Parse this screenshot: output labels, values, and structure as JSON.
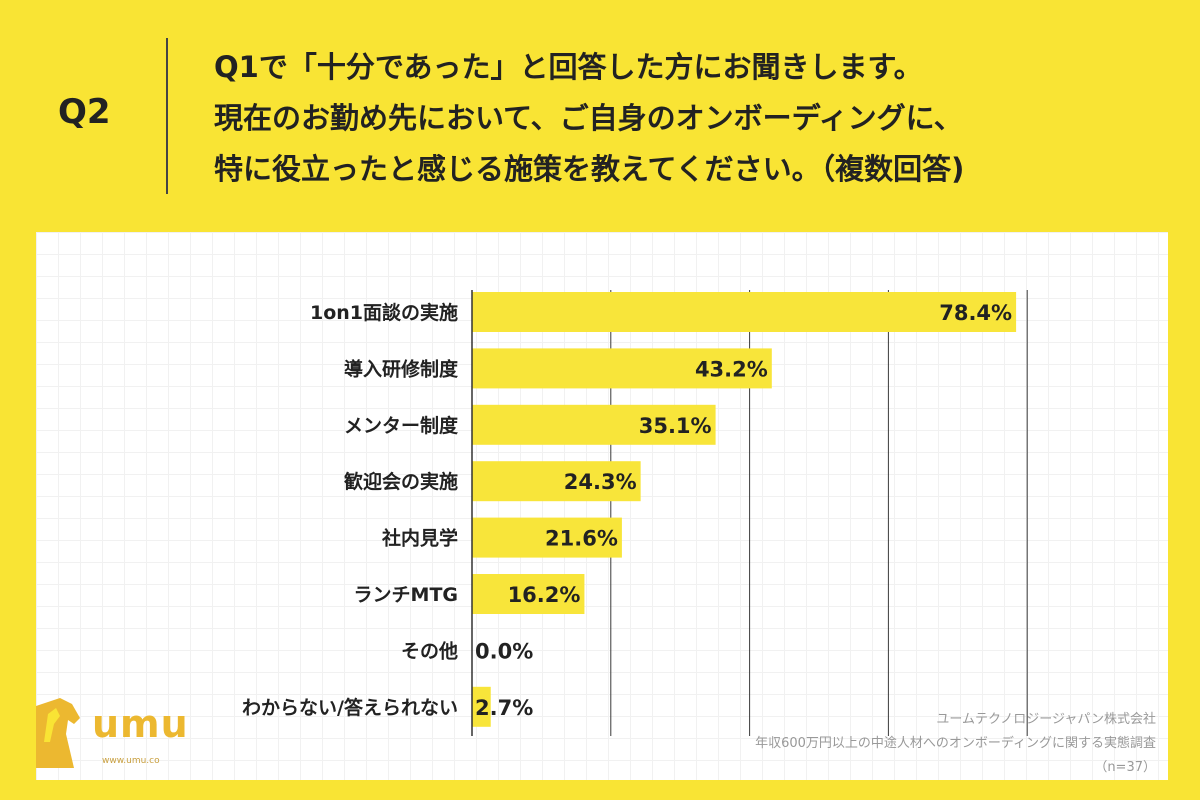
{
  "header": {
    "q_label": "Q2",
    "question_lines": [
      "Q1で「十分であった」と回答した方にお聞きします。",
      "現在のお勤め先において、ご自身のオンボーディングに、",
      "特に役立ったと感じる施策を教えてください。（複数回答)"
    ]
  },
  "chart_data": {
    "type": "bar",
    "orientation": "horizontal",
    "categories": [
      "1on1面談の実施",
      "導入研修制度",
      "メンター制度",
      "歓迎会の実施",
      "社内見学",
      "ランチMTG",
      "その他",
      "わからない/答えられない"
    ],
    "values": [
      78.4,
      43.2,
      35.1,
      24.3,
      21.6,
      16.2,
      0.0,
      2.7
    ],
    "value_labels": [
      "78.4%",
      "43.2%",
      "35.1%",
      "24.3%",
      "21.6%",
      "16.2%",
      "0.0%",
      "2.7%"
    ],
    "xlim": [
      0,
      100
    ],
    "bar_color": "#f8e53a",
    "grid": true
  },
  "logo": {
    "text": "umu",
    "url": "www.umu.co",
    "color": "#ecb830"
  },
  "credit": {
    "company": "ユームテクノロジージャパン株式会社",
    "survey": "年収600万円以上の中途人材へのオンボーディングに関する実態調査",
    "sample": "（n=37）"
  }
}
